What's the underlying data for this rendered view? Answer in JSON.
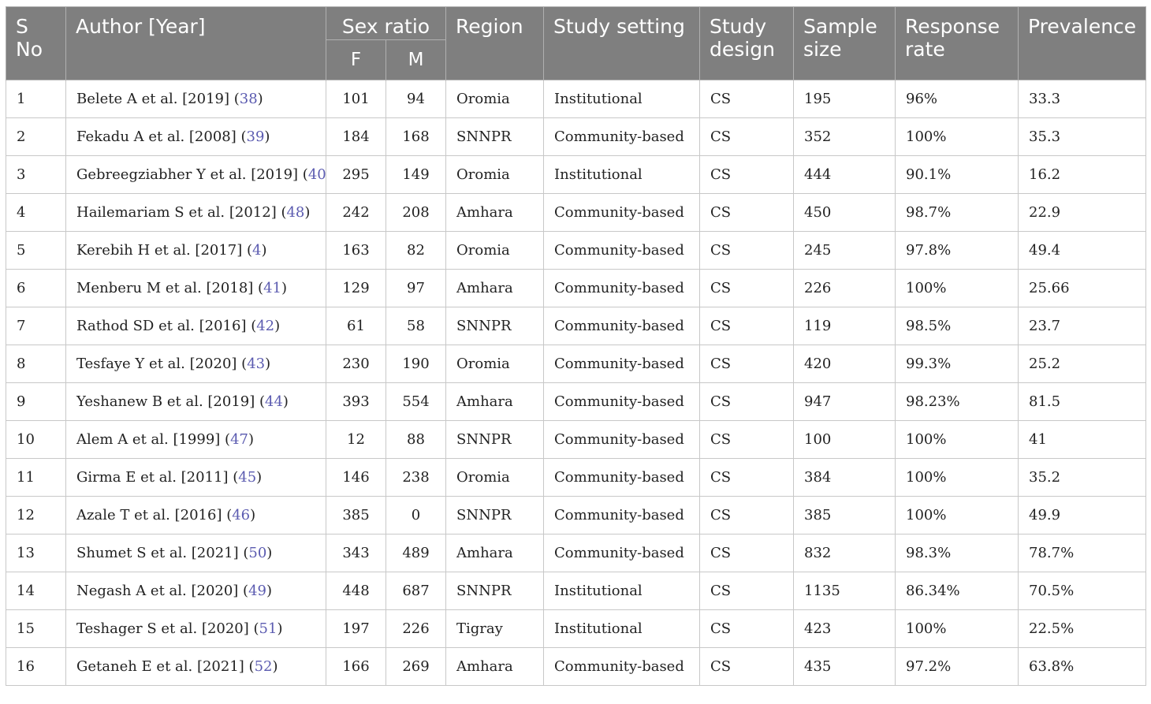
{
  "headers": {
    "sno": "S No",
    "author": "Author [Year]",
    "sex_ratio": "Sex ratio",
    "f": "F",
    "m": "M",
    "region": "Region",
    "setting": "Study setting",
    "design": "Study design",
    "sample": "Sample size",
    "response": "Response rate",
    "prevalence": "Prevalence"
  },
  "rows": [
    {
      "sno": "1",
      "author": "Belete A et al. [2019]",
      "ref": "38",
      "f": "101",
      "m": "94",
      "region": "Oromia",
      "setting": "Institutional",
      "design": "CS",
      "sample": "195",
      "response": "96%",
      "prevalence": "33.3"
    },
    {
      "sno": "2",
      "author": "Fekadu A et al. [2008]",
      "ref": "39",
      "f": "184",
      "m": "168",
      "region": "SNNPR",
      "setting": "Community-based",
      "design": "CS",
      "sample": "352",
      "response": "100%",
      "prevalence": "35.3"
    },
    {
      "sno": "3",
      "author": "Gebreegziabher Y et al. [2019]",
      "ref": "40",
      "f": "295",
      "m": "149",
      "region": "Oromia",
      "setting": "Institutional",
      "design": "CS",
      "sample": "444",
      "response": "90.1%",
      "prevalence": "16.2"
    },
    {
      "sno": "4",
      "author": "Hailemariam S et al. [2012]",
      "ref": "48",
      "f": "242",
      "m": "208",
      "region": "Amhara",
      "setting": "Community-based",
      "design": "CS",
      "sample": "450",
      "response": "98.7%",
      "prevalence": "22.9"
    },
    {
      "sno": "5",
      "author": "Kerebih H et al. [2017]",
      "ref": "4",
      "f": "163",
      "m": "82",
      "region": "Oromia",
      "setting": "Community-based",
      "design": "CS",
      "sample": "245",
      "response": "97.8%",
      "prevalence": "49.4"
    },
    {
      "sno": "6",
      "author": "Menberu M et al. [2018]",
      "ref": "41",
      "f": "129",
      "m": "97",
      "region": "Amhara",
      "setting": "Community-based",
      "design": "CS",
      "sample": "226",
      "response": "100%",
      "prevalence": "25.66"
    },
    {
      "sno": "7",
      "author": "Rathod SD et al. [2016]",
      "ref": "42",
      "f": "61",
      "m": "58",
      "region": "SNNPR",
      "setting": "Community-based",
      "design": "CS",
      "sample": "119",
      "response": "98.5%",
      "prevalence": "23.7"
    },
    {
      "sno": "8",
      "author": "Tesfaye Y et al. [2020]",
      "ref": "43",
      "f": "230",
      "m": "190",
      "region": "Oromia",
      "setting": "Community-based",
      "design": "CS",
      "sample": "420",
      "response": "99.3%",
      "prevalence": "25.2"
    },
    {
      "sno": "9",
      "author": "Yeshanew B et al. [2019]",
      "ref": "44",
      "f": "393",
      "m": "554",
      "region": "Amhara",
      "setting": "Community-based",
      "design": "CS",
      "sample": "947",
      "response": "98.23%",
      "prevalence": "81.5"
    },
    {
      "sno": "10",
      "author": "Alem A et al. [1999]",
      "ref": "47",
      "f": "12",
      "m": "88",
      "region": "SNNPR",
      "setting": "Community-based",
      "design": "CS",
      "sample": "100",
      "response": "100%",
      "prevalence": "41"
    },
    {
      "sno": "11",
      "author": "Girma E et al. [2011]",
      "ref": "45",
      "f": "146",
      "m": "238",
      "region": "Oromia",
      "setting": "Community-based",
      "design": "CS",
      "sample": "384",
      "response": "100%",
      "prevalence": "35.2"
    },
    {
      "sno": "12",
      "author": "Azale T et al. [2016]",
      "ref": "46",
      "f": "385",
      "m": "0",
      "region": "SNNPR",
      "setting": "Community-based",
      "design": "CS",
      "sample": "385",
      "response": "100%",
      "prevalence": "49.9"
    },
    {
      "sno": "13",
      "author": "Shumet S et al. [2021]",
      "ref": "50",
      "f": "343",
      "m": "489",
      "region": "Amhara",
      "setting": "Community-based",
      "design": "CS",
      "sample": "832",
      "response": "98.3%",
      "prevalence": "78.7%"
    },
    {
      "sno": "14",
      "author": "Negash A et al. [2020]",
      "ref": "49",
      "f": "448",
      "m": "687",
      "region": "SNNPR",
      "setting": "Institutional",
      "design": "CS",
      "sample": "1135",
      "response": "86.34%",
      "prevalence": "70.5%"
    },
    {
      "sno": "15",
      "author": "Teshager S et al. [2020]",
      "ref": "51",
      "f": "197",
      "m": "226",
      "region": "Tigray",
      "setting": "Institutional",
      "design": "CS",
      "sample": "423",
      "response": "100%",
      "prevalence": "22.5%"
    },
    {
      "sno": "16",
      "author": "Getaneh E et al. [2021]",
      "ref": "52",
      "f": "166",
      "m": "269",
      "region": "Amhara",
      "setting": "Community-based",
      "design": "CS",
      "sample": "435",
      "response": "97.2%",
      "prevalence": "63.8%"
    }
  ]
}
